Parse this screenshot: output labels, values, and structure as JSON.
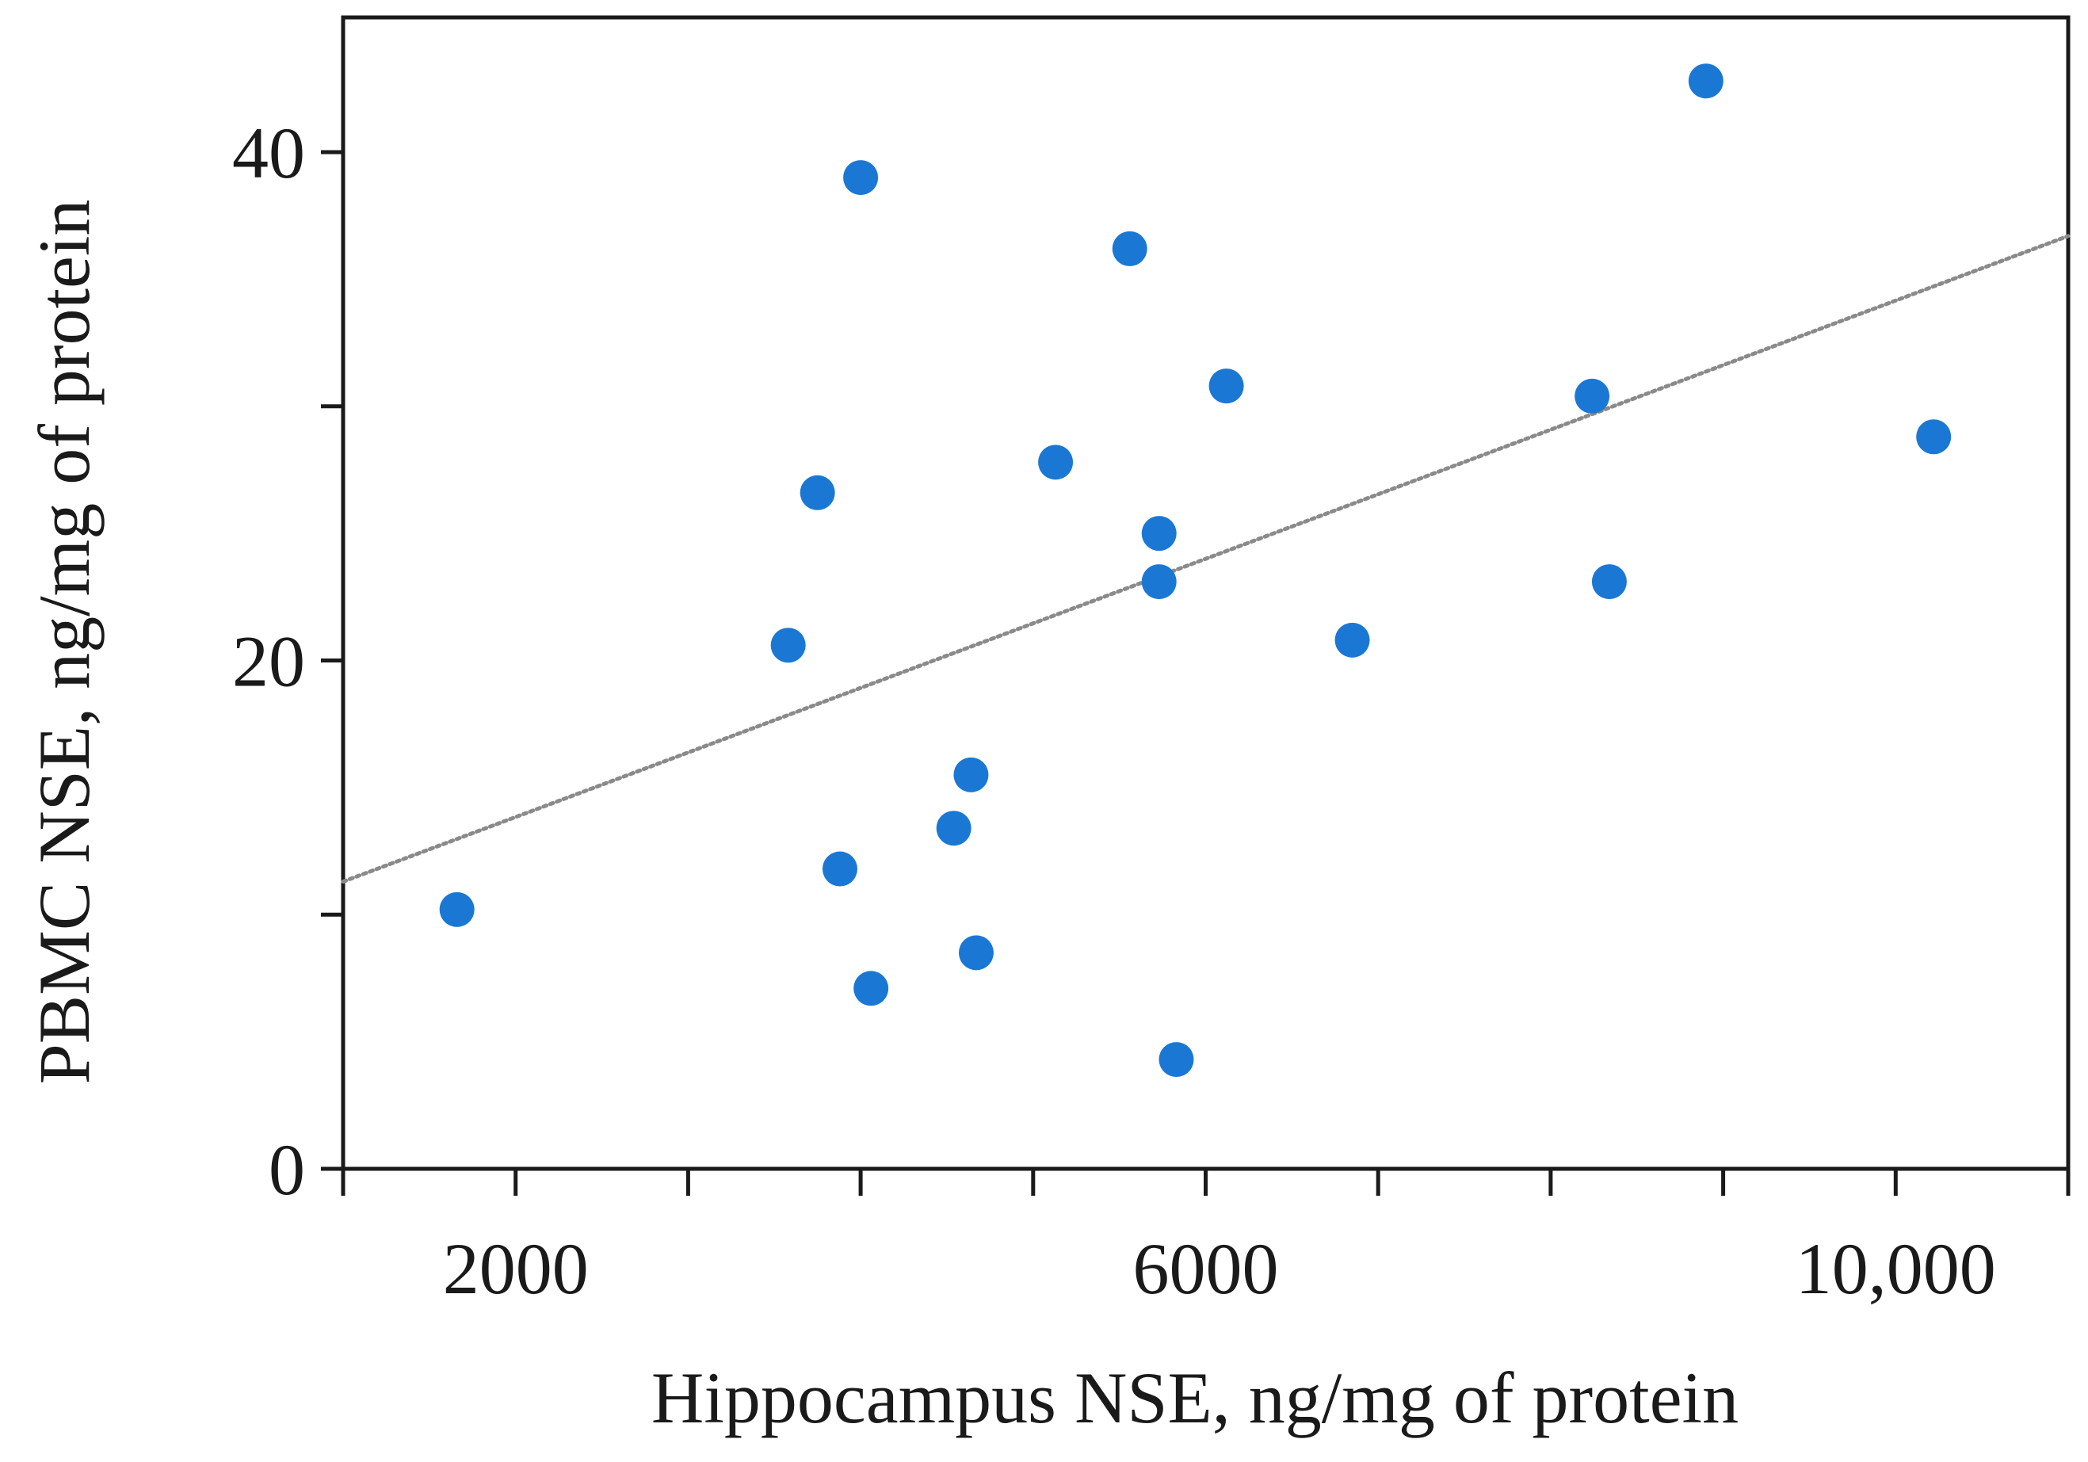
{
  "chart_data": {
    "type": "scatter",
    "title": "",
    "xlabel": "Hippocampus  NSE, ng/mg  of protein",
    "ylabel": "PBMC NSE, ng/mg  of protein",
    "xlim": [
      1000,
      11000
    ],
    "ylim": [
      0,
      45.3
    ],
    "x_ticks": [
      1000,
      2000,
      3000,
      4000,
      5000,
      6000,
      7000,
      8000,
      9000,
      10000,
      11000
    ],
    "x_tick_labels": [
      {
        "value": 2000,
        "label": "2000"
      },
      {
        "value": 6000,
        "label": "6000"
      },
      {
        "value": 10000,
        "label": "10,000"
      }
    ],
    "y_ticks": [
      0,
      10,
      20,
      30,
      40
    ],
    "y_tick_labels": [
      {
        "value": 0,
        "label": "0"
      },
      {
        "value": 20,
        "label": "20"
      },
      {
        "value": 40,
        "label": "40"
      }
    ],
    "grid": false,
    "legend": "none",
    "series": [
      {
        "color": "#1a78d4",
        "points": [
          {
            "x": 1660,
            "y": 10.2
          },
          {
            "x": 3580,
            "y": 20.6
          },
          {
            "x": 3750,
            "y": 26.6
          },
          {
            "x": 3880,
            "y": 11.8
          },
          {
            "x": 4000,
            "y": 39.0
          },
          {
            "x": 4060,
            "y": 7.1
          },
          {
            "x": 4540,
            "y": 13.4
          },
          {
            "x": 4640,
            "y": 15.5
          },
          {
            "x": 4670,
            "y": 8.5
          },
          {
            "x": 5130,
            "y": 27.8
          },
          {
            "x": 5560,
            "y": 36.2
          },
          {
            "x": 5730,
            "y": 25.0
          },
          {
            "x": 5730,
            "y": 23.1
          },
          {
            "x": 5830,
            "y": 4.3
          },
          {
            "x": 6120,
            "y": 30.8
          },
          {
            "x": 6850,
            "y": 20.8
          },
          {
            "x": 8240,
            "y": 30.4
          },
          {
            "x": 8340,
            "y": 23.1
          },
          {
            "x": 8900,
            "y": 42.8
          },
          {
            "x": 10220,
            "y": 28.8
          }
        ]
      }
    ],
    "trendline": {
      "style": "dotted",
      "color": "#8a8a8a",
      "from": {
        "x": 1000,
        "y": 11.3
      },
      "to": {
        "x": 11000,
        "y": 36.7
      }
    }
  }
}
